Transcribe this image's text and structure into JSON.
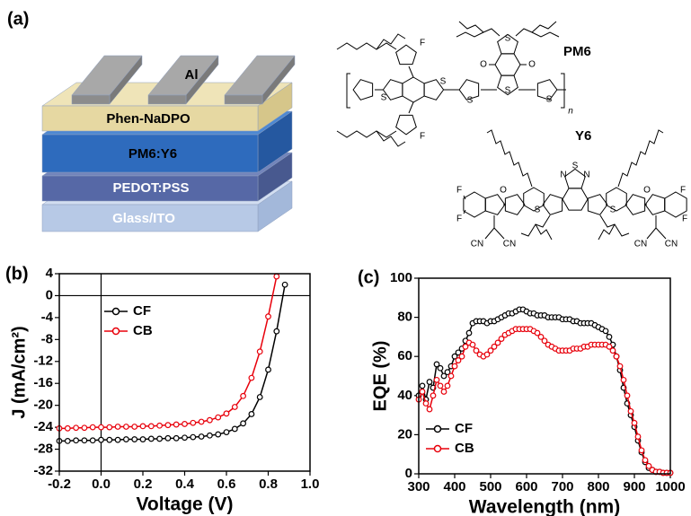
{
  "panel_labels": [
    "(a)",
    "(b)",
    "(c)"
  ],
  "device": {
    "layers": [
      "Al",
      "Phen-NaDPO",
      "PM6:Y6",
      "PEDOT:PSS",
      "Glass/ITO"
    ]
  },
  "molecules": [
    {
      "name": "PM6",
      "atoms": [
        "F",
        "F",
        "S",
        "S",
        "S",
        "S",
        "S",
        "O",
        "O",
        "S",
        "n"
      ]
    },
    {
      "name": "Y6",
      "atoms": [
        "N",
        "S",
        "N",
        "S",
        "S",
        "F",
        "F",
        "O",
        "CN",
        "CN",
        "F",
        "F",
        "O",
        "CN",
        "CN"
      ]
    }
  ],
  "chart_data": [
    {
      "type": "line",
      "xlabel": "Voltage (V)",
      "ylabel": "J (mA/cm²)",
      "x": [
        -0.2,
        -0.16,
        -0.12,
        -0.08,
        -0.04,
        0,
        0.04,
        0.08,
        0.12,
        0.16,
        0.2,
        0.24,
        0.28,
        0.32,
        0.36,
        0.4,
        0.44,
        0.48,
        0.52,
        0.56,
        0.6,
        0.64,
        0.68,
        0.72,
        0.76,
        0.8,
        0.84,
        0.88
      ],
      "series": [
        {
          "name": "CF",
          "color": "#000000",
          "values": [
            -26.5,
            -26.5,
            -26.4,
            -26.4,
            -26.4,
            -26.3,
            -26.3,
            -26.3,
            -26.2,
            -26.2,
            -26.2,
            -26.1,
            -26.1,
            -26.0,
            -26.0,
            -25.9,
            -25.8,
            -25.7,
            -25.5,
            -25.3,
            -24.9,
            -24.3,
            -23.3,
            -21.6,
            -18.5,
            -13.5,
            -6.5,
            2.0
          ]
        },
        {
          "name": "CB",
          "color": "#e8000b",
          "values": [
            -24.2,
            -24.2,
            -24.1,
            -24.1,
            -24.0,
            -24.0,
            -24.0,
            -23.9,
            -23.9,
            -23.9,
            -23.8,
            -23.8,
            -23.7,
            -23.6,
            -23.5,
            -23.4,
            -23.2,
            -23.0,
            -22.7,
            -22.2,
            -21.5,
            -20.3,
            -18.3,
            -15.0,
            -10.2,
            -3.8,
            3.5,
            null
          ]
        }
      ],
      "xlim": [
        -0.2,
        1.0
      ],
      "ylim": [
        -32,
        4
      ],
      "xticks": [
        -0.2,
        {
          "value": 0,
          "label": "0.0"
        },
        0.2,
        0.4,
        0.6,
        0.8,
        {
          "value": 1,
          "label": "1.0"
        }
      ],
      "yticks": [
        -32,
        -28,
        -24,
        -20,
        -16,
        -12,
        -8,
        -4,
        0,
        4
      ],
      "hline": 0,
      "vline": 0,
      "legend": "upper left"
    },
    {
      "type": "line",
      "xlabel": "Wavelength (nm)",
      "ylabel": "EQE (%)",
      "x": [
        300,
        310,
        320,
        330,
        340,
        350,
        360,
        370,
        380,
        390,
        400,
        410,
        420,
        430,
        440,
        450,
        460,
        470,
        480,
        490,
        500,
        510,
        520,
        530,
        540,
        550,
        560,
        570,
        580,
        590,
        600,
        610,
        620,
        630,
        640,
        650,
        660,
        670,
        680,
        690,
        700,
        710,
        720,
        730,
        740,
        750,
        760,
        770,
        780,
        790,
        800,
        810,
        820,
        830,
        840,
        850,
        860,
        870,
        880,
        890,
        900,
        910,
        920,
        930,
        940,
        950,
        960,
        970,
        980,
        990,
        1000
      ],
      "series": [
        {
          "name": "CF",
          "color": "#000000",
          "values": [
            40,
            45,
            38,
            47,
            44,
            56,
            54,
            50,
            52,
            55,
            60,
            62,
            64,
            68,
            72,
            77,
            78,
            78,
            78,
            77,
            78,
            78,
            79,
            80,
            81,
            82,
            82,
            83,
            84,
            84,
            83,
            82,
            82,
            81,
            81,
            81,
            80,
            80,
            80,
            80,
            79,
            79,
            79,
            78,
            78,
            77,
            77,
            77,
            77,
            76,
            75,
            74,
            73,
            70,
            66,
            60,
            53,
            44,
            36,
            30,
            24,
            17,
            11,
            6,
            3,
            2,
            1,
            1,
            0.5,
            0.5,
            0.5
          ]
        },
        {
          "name": "CB",
          "color": "#e8000b",
          "values": [
            38,
            42,
            36,
            33,
            40,
            48,
            45,
            42,
            45,
            50,
            55,
            58,
            60,
            65,
            67,
            66,
            63,
            61,
            60,
            61,
            63,
            65,
            67,
            69,
            71,
            72,
            73,
            74,
            74,
            74,
            74,
            74,
            73,
            72,
            70,
            68,
            66,
            65,
            64,
            63,
            63,
            63,
            63,
            64,
            64,
            64,
            65,
            65,
            66,
            66,
            66,
            66,
            66,
            65,
            63,
            60,
            55,
            48,
            40,
            32,
            26,
            19,
            12,
            7,
            4,
            2,
            1,
            1,
            0.5,
            0.5,
            0.5
          ]
        }
      ],
      "xlim": [
        300,
        1000
      ],
      "ylim": [
        0,
        100
      ],
      "xticks": [
        300,
        400,
        500,
        600,
        700,
        800,
        900,
        1000
      ],
      "yticks": [
        0,
        20,
        40,
        60,
        80,
        100
      ],
      "legend": "lower left"
    }
  ]
}
